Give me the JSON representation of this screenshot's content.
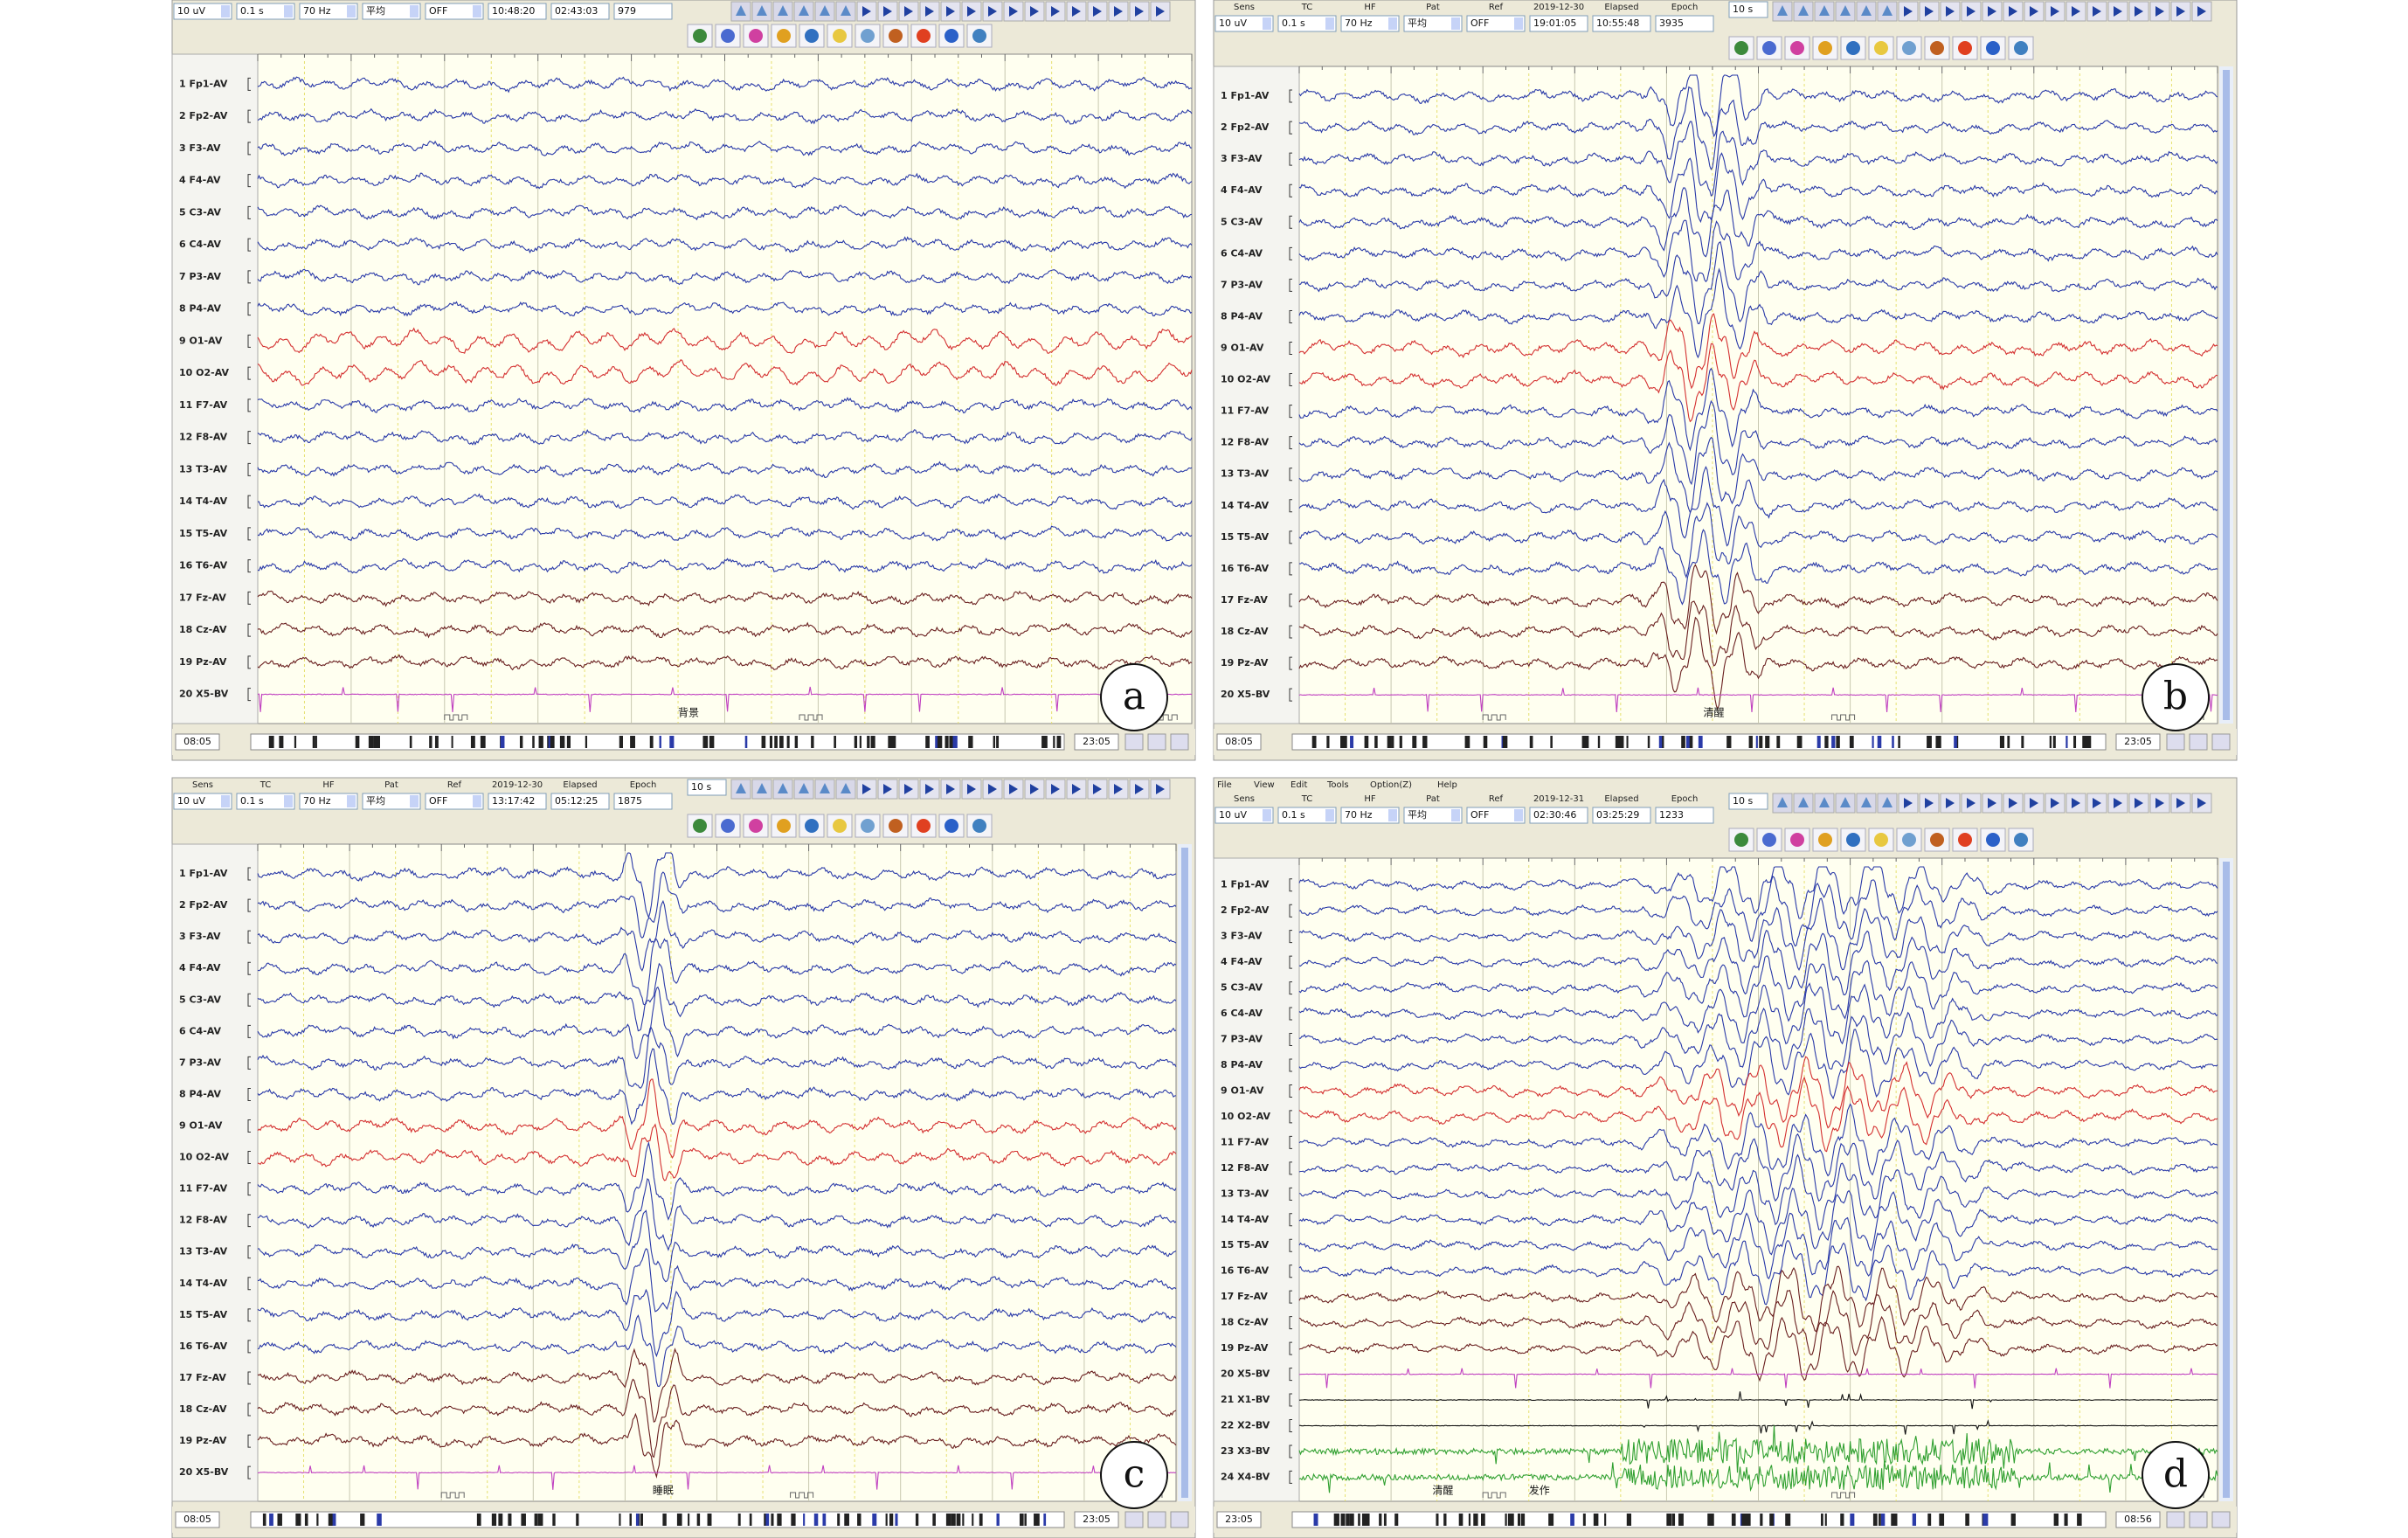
{
  "panels": [
    {
      "label": "a",
      "headers": null,
      "menu": null,
      "page": null,
      "fields": [
        "10 uV",
        "0.1 s",
        "70 Hz",
        "平均",
        "OFF",
        "10:48:20",
        "02:43:03",
        "979"
      ],
      "channels": [
        "1 Fp1-AV",
        "2 Fp2-AV",
        "3 F3-AV",
        "4 F4-AV",
        "5 C3-AV",
        "6 C4-AV",
        "7 P3-AV",
        "8 P4-AV",
        "9 O1-AV",
        "10 O2-AV",
        "11 F7-AV",
        "12 F8-AV",
        "13 T3-AV",
        "14 T4-AV",
        "15 T5-AV",
        "16 T6-AV",
        "17 Fz-AV",
        "18 Cz-AV",
        "19 Pz-AV",
        "20 X5-BV"
      ],
      "annotations": [
        "背景"
      ],
      "footer": [
        "08:05",
        "23:05"
      ]
    },
    {
      "label": "b",
      "headers": [
        "Sens",
        "TC",
        "HF",
        "Pat",
        "Ref",
        "2019-12-30",
        "Elapsed",
        "Epoch"
      ],
      "menu": null,
      "page": "10 s",
      "fields": [
        "10 uV",
        "0.1 s",
        "70 Hz",
        "平均",
        "OFF",
        "19:01:05",
        "10:55:48",
        "3935"
      ],
      "channels": [
        "1 Fp1-AV",
        "2 Fp2-AV",
        "3 F3-AV",
        "4 F4-AV",
        "5 C3-AV",
        "6 C4-AV",
        "7 P3-AV",
        "8 P4-AV",
        "9 O1-AV",
        "10 O2-AV",
        "11 F7-AV",
        "12 F8-AV",
        "13 T3-AV",
        "14 T4-AV",
        "15 T5-AV",
        "16 T6-AV",
        "17 Fz-AV",
        "18 Cz-AV",
        "19 Pz-AV",
        "20 X5-BV"
      ],
      "annotations": [
        "清醒"
      ],
      "footer": [
        "08:05",
        "23:05"
      ]
    },
    {
      "label": "c",
      "headers": [
        "Sens",
        "TC",
        "HF",
        "Pat",
        "Ref",
        "2019-12-30",
        "Elapsed",
        "Epoch"
      ],
      "menu": null,
      "page": "10 s",
      "fields": [
        "10 uV",
        "0.1 s",
        "70 Hz",
        "平均",
        "OFF",
        "13:17:42",
        "05:12:25",
        "1875"
      ],
      "channels": [
        "1 Fp1-AV",
        "2 Fp2-AV",
        "3 F3-AV",
        "4 F4-AV",
        "5 C3-AV",
        "6 C4-AV",
        "7 P3-AV",
        "8 P4-AV",
        "9 O1-AV",
        "10 O2-AV",
        "11 F7-AV",
        "12 F8-AV",
        "13 T3-AV",
        "14 T4-AV",
        "15 T5-AV",
        "16 T6-AV",
        "17 Fz-AV",
        "18 Cz-AV",
        "19 Pz-AV",
        "20 X5-BV"
      ],
      "annotations": [
        "睡眠"
      ],
      "footer": [
        "08:05",
        "23:05"
      ]
    },
    {
      "label": "d",
      "headers": [
        "Sens",
        "TC",
        "HF",
        "Pat",
        "Ref",
        "2019-12-31",
        "Elapsed",
        "Epoch"
      ],
      "menu": [
        "File",
        "View",
        "Edit",
        "Tools",
        "Option(Z)",
        "Help"
      ],
      "page": "10 s",
      "fields": [
        "10 uV",
        "0.1 s",
        "70 Hz",
        "平均",
        "OFF",
        "02:30:46",
        "03:25:29",
        "1233"
      ],
      "channels": [
        "1 Fp1-AV",
        "2 Fp2-AV",
        "3 F3-AV",
        "4 F4-AV",
        "5 C3-AV",
        "6 C4-AV",
        "7 P3-AV",
        "8 P4-AV",
        "9 O1-AV",
        "10 O2-AV",
        "11 F7-AV",
        "12 F8-AV",
        "13 T3-AV",
        "14 T4-AV",
        "15 T5-AV",
        "16 T6-AV",
        "17 Fz-AV",
        "18 Cz-AV",
        "19 Pz-AV",
        "20 X5-BV",
        "21 X1-BV",
        "22 X2-BV",
        "23 X3-BV",
        "24 X4-BV"
      ],
      "annotations": [
        "清醒",
        "发作"
      ],
      "footer": [
        "23:05",
        "08:56"
      ]
    }
  ]
}
